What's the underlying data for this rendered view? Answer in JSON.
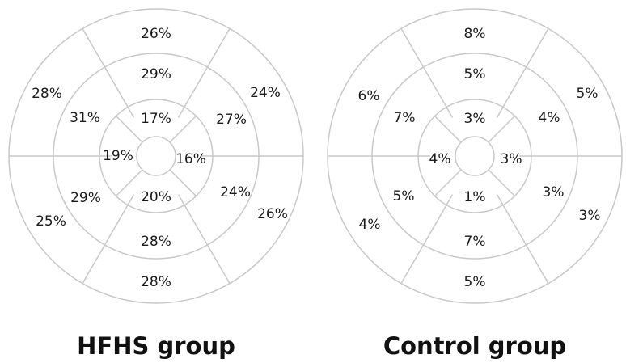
{
  "plots": [
    {
      "title": "HFHS group",
      "outer": [
        "26%",
        "24%",
        "26%",
        "28%",
        "25%",
        "28%"
      ],
      "middle": [
        "29%",
        "27%",
        "24%",
        "28%",
        "29%",
        "31%"
      ],
      "inner": [
        "17%",
        "16%",
        "20%",
        "19%"
      ]
    },
    {
      "title": "Control group",
      "outer": [
        "8%",
        "5%",
        "3%",
        "5%",
        "4%",
        "6%"
      ],
      "middle": [
        "5%",
        "4%",
        "3%",
        "7%",
        "5%",
        "7%"
      ],
      "inner": [
        "3%",
        "3%",
        "1%",
        "4%"
      ]
    }
  ]
}
